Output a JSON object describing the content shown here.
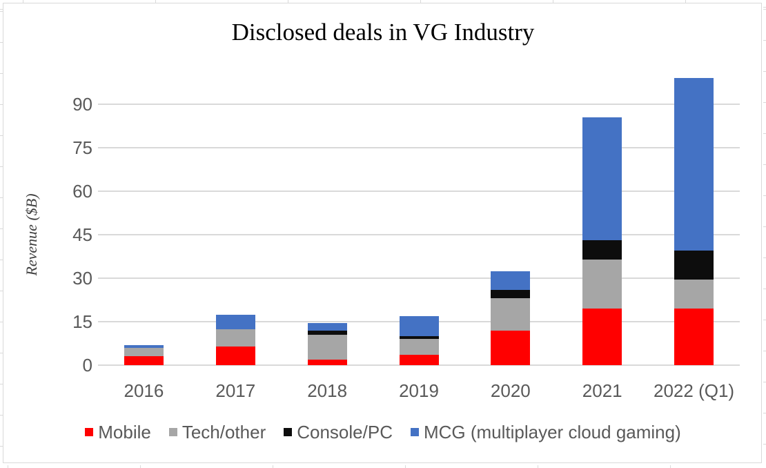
{
  "theme": {
    "background": "#FFFFFF",
    "frame_border_color": "#D9D9D9",
    "gridline_color": "#D9D9D9",
    "axis_line_color": "#D9D9D9",
    "axis_text_color": "#595959",
    "title_color": "#000000",
    "y_axis_title_color": "#404040"
  },
  "chart_data": {
    "type": "bar",
    "stacked": true,
    "title": "Disclosed deals in VG Industry",
    "ylabel": "Revenue ($B)",
    "xlabel": "",
    "categories": [
      "2016",
      "2017",
      "2018",
      "2019",
      "2020",
      "2021",
      "2022 (Q1)"
    ],
    "series": [
      {
        "name": "Mobile",
        "color": "#FF0000",
        "values": [
          3,
          6.5,
          2,
          3.5,
          12,
          19.5,
          19.5
        ]
      },
      {
        "name": "Tech/other",
        "color": "#A6A6A6",
        "values": [
          3,
          6,
          8.5,
          5.5,
          11,
          17,
          10
        ]
      },
      {
        "name": "Console/PC",
        "color": "#0D0D0D",
        "values": [
          0,
          0,
          1.5,
          1,
          3,
          6.5,
          10
        ]
      },
      {
        "name": "MCG (multiplayer cloud gaming)",
        "color": "#4472C4",
        "values": [
          1,
          5,
          2.5,
          7,
          6.5,
          42.5,
          59.5
        ]
      }
    ],
    "totals": [
      7,
      17.5,
      14.5,
      17,
      32.5,
      85.5,
      99
    ],
    "ylim": [
      0,
      100
    ],
    "yticks": [
      0,
      15,
      30,
      45,
      60,
      75,
      90
    ],
    "grid": true,
    "legend_position": "bottom"
  }
}
